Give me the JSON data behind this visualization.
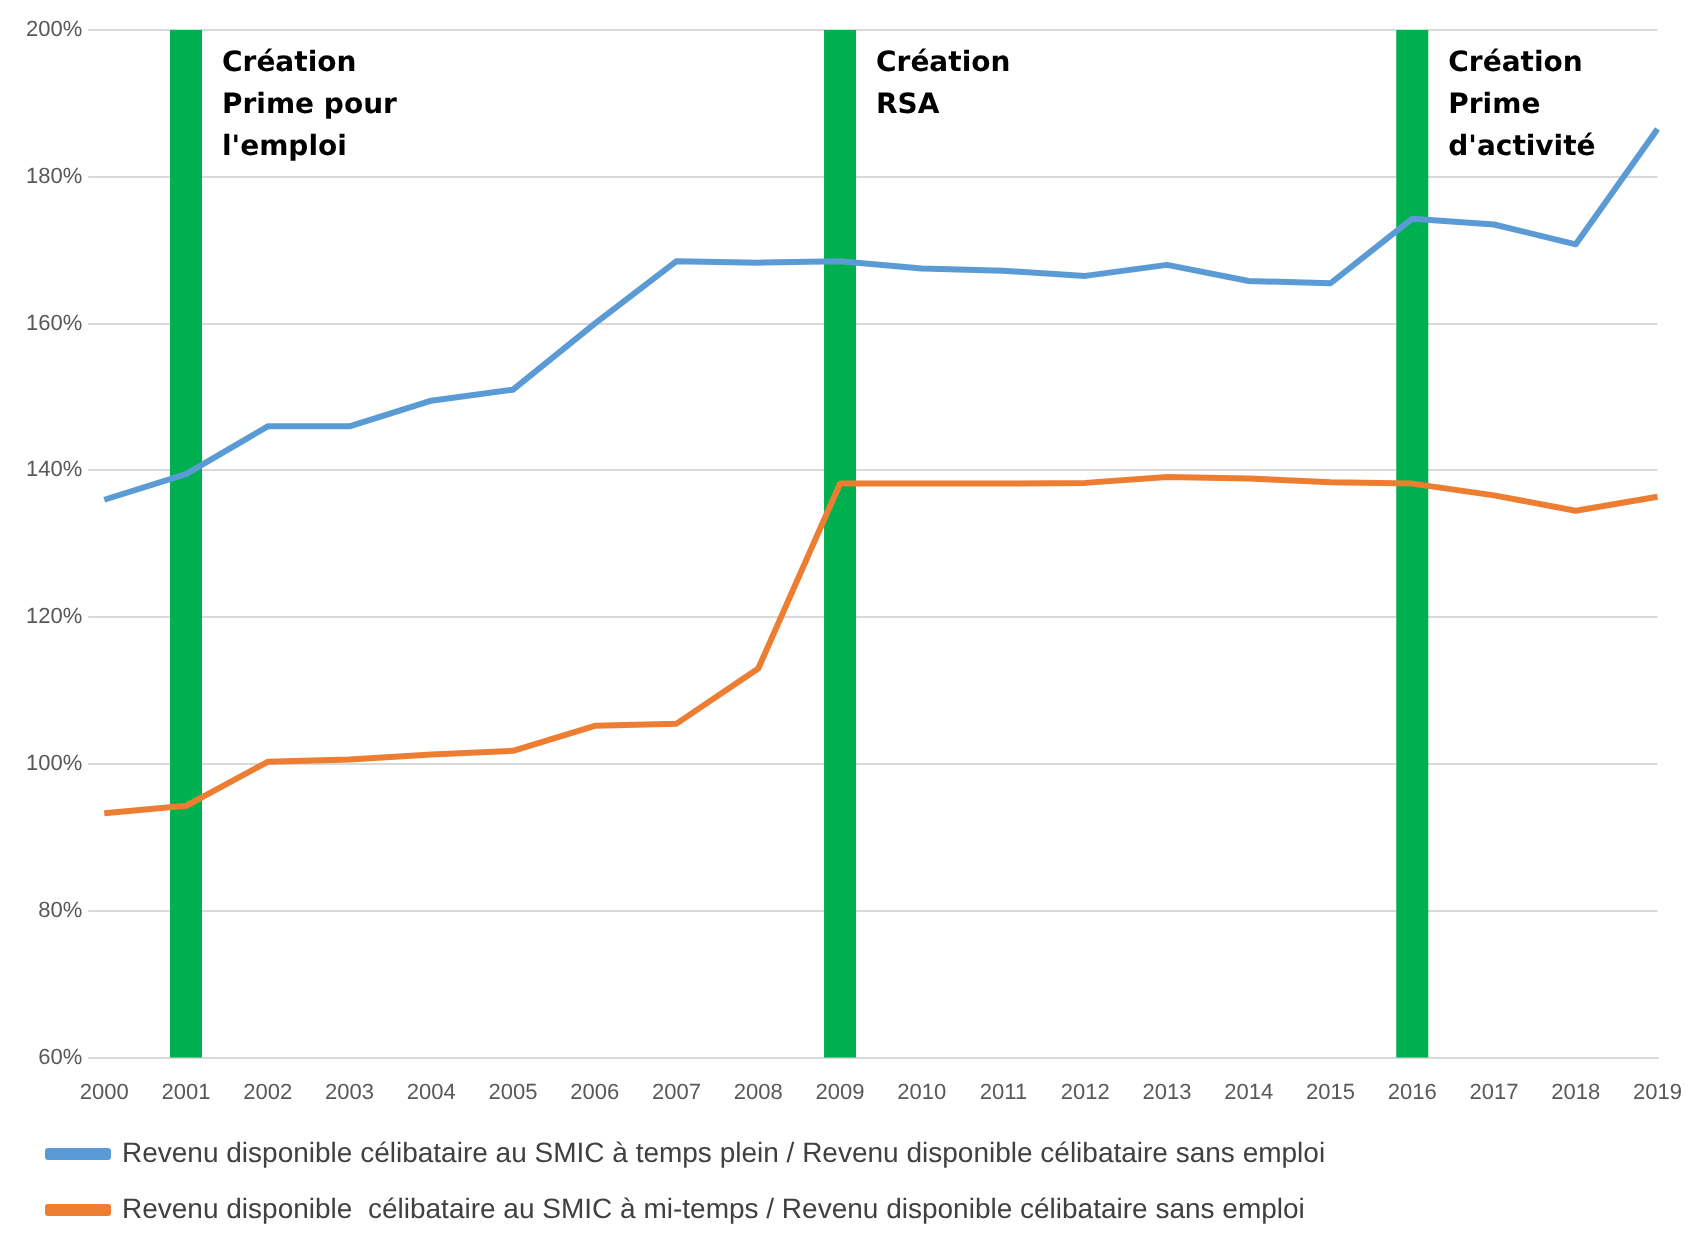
{
  "chart_data": {
    "type": "line",
    "categories": [
      "2000",
      "2001",
      "2002",
      "2003",
      "2004",
      "2005",
      "2006",
      "2007",
      "2008",
      "2009",
      "2010",
      "2011",
      "2012",
      "2013",
      "2014",
      "2015",
      "2016",
      "2017",
      "2018",
      "2019"
    ],
    "series": [
      {
        "name": "Revenu disponible célibataire au SMIC à temps plein / Revenu disponible célibataire sans emploi",
        "color": "#5b9bd5",
        "values": [
          136,
          139.5,
          146,
          146,
          149.5,
          151,
          160,
          168.5,
          168.3,
          168.5,
          167.5,
          167.2,
          166.5,
          168,
          165.8,
          165.5,
          174.3,
          173.5,
          170.8,
          186.5
        ]
      },
      {
        "name": "Revenu disponible  célibataire au SMIC à mi-temps / Revenu disponible célibataire sans emploi",
        "color": "#ed7d31",
        "values": [
          93.3,
          94.3,
          100.3,
          100.6,
          101.3,
          101.8,
          105.2,
          105.5,
          113,
          138.2,
          138.2,
          138.2,
          138.3,
          139.1,
          138.9,
          138.4,
          138.2,
          136.6,
          134.5,
          136.4
        ]
      }
    ],
    "ylim": [
      60,
      200
    ],
    "yticks": [
      {
        "value": 60,
        "label": "60%"
      },
      {
        "value": 80,
        "label": "80%"
      },
      {
        "value": 100,
        "label": "100%"
      },
      {
        "value": 120,
        "label": "120%"
      },
      {
        "value": 140,
        "label": "140%"
      },
      {
        "value": 160,
        "label": "160%"
      },
      {
        "value": 180,
        "label": "180%"
      },
      {
        "value": 200,
        "label": "200%"
      }
    ],
    "ref_lines": [
      {
        "axis": "x",
        "value": "2001",
        "label": "Création Prime pour l'emploi",
        "color": "#00b050"
      },
      {
        "axis": "x",
        "value": "2009",
        "label": "Création RSA",
        "color": "#00b050"
      },
      {
        "axis": "x",
        "value": "2016",
        "label": "Création Prime d'activité",
        "color": "#00b050"
      }
    ],
    "grid": "y",
    "legend": "bottom",
    "marker": "none",
    "line_style": "solid"
  }
}
